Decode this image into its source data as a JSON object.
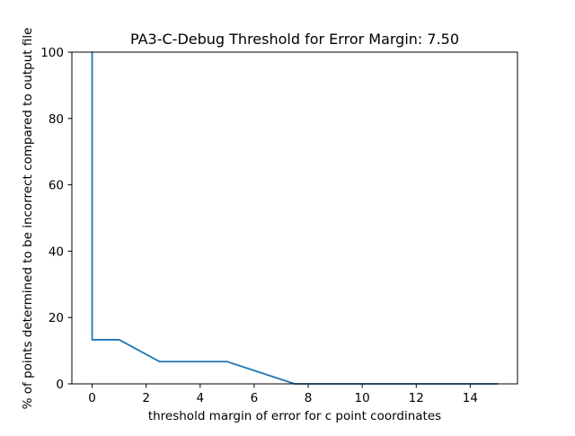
{
  "chart_data": {
    "type": "line",
    "title": "PA3-C-Debug Threshold for Error Margin: 7.50",
    "xlabel": "threshold margin of error for c point coordinates",
    "ylabel": "% of points determined to be incorrect compared to output file",
    "xlim": [
      -0.75,
      15.75
    ],
    "ylim": [
      0,
      100
    ],
    "xticks": [
      0,
      2,
      4,
      6,
      8,
      10,
      12,
      14
    ],
    "yticks": [
      0,
      20,
      40,
      60,
      80,
      100
    ],
    "grid": false,
    "series": [
      {
        "color": "#1f77b4",
        "x": [
          0,
          0,
          1,
          2.5,
          5,
          7.5,
          15
        ],
        "y": [
          100,
          13.3,
          13.3,
          6.7,
          6.7,
          0,
          0
        ]
      }
    ]
  }
}
